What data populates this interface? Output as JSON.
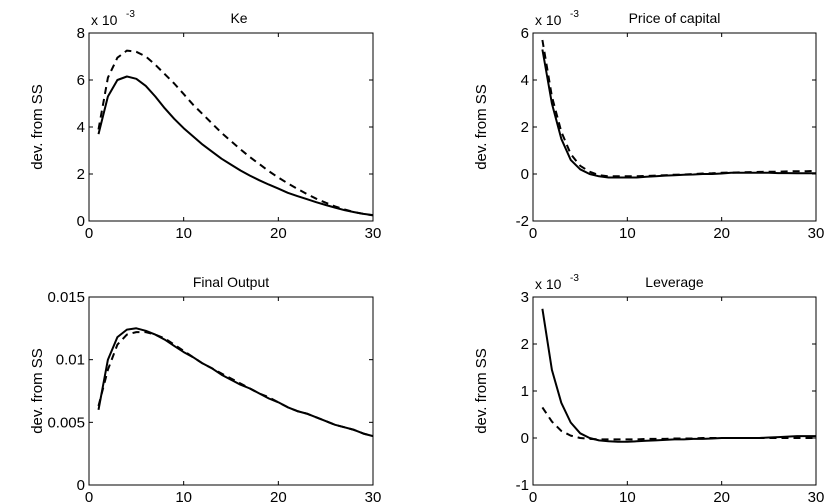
{
  "chart_data": [
    {
      "type": "line",
      "title": "Ke",
      "xlabel": "",
      "ylabel": "dev. from SS",
      "y_scale": {
        "base": "x 10",
        "exponent": "-3"
      },
      "xlim": [
        0,
        30
      ],
      "ylim": [
        0,
        8
      ],
      "x_ticks": [
        "0",
        "10",
        "20",
        "30"
      ],
      "y_ticks": [
        "0",
        "2",
        "4",
        "6",
        "8"
      ],
      "x": [
        1,
        2,
        3,
        4,
        5,
        6,
        7,
        8,
        9,
        10,
        11,
        12,
        13,
        14,
        15,
        16,
        17,
        18,
        19,
        20,
        21,
        22,
        23,
        24,
        25,
        26,
        27,
        28,
        29,
        30
      ],
      "series": [
        {
          "style": "solid",
          "values": [
            3.7,
            5.3,
            6.0,
            6.15,
            6.05,
            5.75,
            5.3,
            4.8,
            4.35,
            3.95,
            3.6,
            3.25,
            2.95,
            2.65,
            2.4,
            2.15,
            1.93,
            1.73,
            1.55,
            1.38,
            1.2,
            1.06,
            0.93,
            0.8,
            0.68,
            0.57,
            0.46,
            0.38,
            0.3,
            0.25
          ]
        },
        {
          "style": "dashed",
          "values": [
            3.9,
            6.1,
            6.95,
            7.25,
            7.2,
            7.0,
            6.65,
            6.25,
            5.85,
            5.4,
            4.95,
            4.55,
            4.15,
            3.75,
            3.4,
            3.05,
            2.72,
            2.42,
            2.12,
            1.85,
            1.6,
            1.37,
            1.15,
            0.95,
            0.78,
            0.62,
            0.49,
            0.38,
            0.3,
            0.24
          ]
        }
      ]
    },
    {
      "type": "line",
      "title": "Price of capital",
      "xlabel": "",
      "ylabel": "dev. from SS",
      "y_scale": {
        "base": "x 10",
        "exponent": "-3"
      },
      "xlim": [
        0,
        30
      ],
      "ylim": [
        -2,
        6
      ],
      "x_ticks": [
        "0",
        "10",
        "20",
        "30"
      ],
      "y_ticks": [
        "-2",
        "0",
        "2",
        "4",
        "6"
      ],
      "x": [
        1,
        2,
        3,
        4,
        5,
        6,
        7,
        8,
        9,
        10,
        11,
        12,
        13,
        14,
        15,
        16,
        17,
        18,
        19,
        20,
        21,
        22,
        23,
        24,
        25,
        26,
        27,
        28,
        29,
        30
      ],
      "series": [
        {
          "style": "solid",
          "values": [
            5.3,
            3.0,
            1.5,
            0.6,
            0.2,
            0.0,
            -0.1,
            -0.15,
            -0.15,
            -0.15,
            -0.15,
            -0.12,
            -0.1,
            -0.07,
            -0.05,
            -0.03,
            -0.02,
            0.0,
            0.0,
            0.02,
            0.05,
            0.05,
            0.05,
            0.05,
            0.05,
            0.04,
            0.04,
            0.03,
            0.03,
            0.03
          ]
        },
        {
          "style": "dashed",
          "values": [
            5.7,
            3.3,
            1.8,
            0.85,
            0.35,
            0.1,
            -0.05,
            -0.1,
            -0.1,
            -0.1,
            -0.1,
            -0.08,
            -0.07,
            -0.05,
            -0.03,
            -0.02,
            0.0,
            0.02,
            0.03,
            0.05,
            0.06,
            0.07,
            0.08,
            0.09,
            0.1,
            0.1,
            0.11,
            0.12,
            0.12,
            0.13
          ]
        }
      ]
    },
    {
      "type": "line",
      "title": "Final Output",
      "xlabel": "",
      "ylabel": "dev. from SS",
      "xlim": [
        0,
        30
      ],
      "ylim": [
        0,
        0.015
      ],
      "x_ticks": [
        "0",
        "10",
        "20",
        "30"
      ],
      "y_ticks": [
        "0",
        "0.005",
        "0.01",
        "0.015"
      ],
      "x": [
        1,
        2,
        3,
        4,
        5,
        6,
        7,
        8,
        9,
        10,
        11,
        12,
        13,
        14,
        15,
        16,
        17,
        18,
        19,
        20,
        21,
        22,
        23,
        24,
        25,
        26,
        27,
        28,
        29,
        30
      ],
      "series": [
        {
          "style": "solid",
          "values": [
            0.006,
            0.01,
            0.0118,
            0.0124,
            0.0125,
            0.0123,
            0.012,
            0.0116,
            0.0111,
            0.0106,
            0.0102,
            0.0097,
            0.0093,
            0.0088,
            0.0084,
            0.008,
            0.0077,
            0.0073,
            0.0069,
            0.0066,
            0.0062,
            0.0059,
            0.0057,
            0.0054,
            0.0051,
            0.0048,
            0.0046,
            0.0044,
            0.0041,
            0.0039
          ]
        },
        {
          "style": "dashed",
          "values": [
            0.0063,
            0.0092,
            0.0112,
            0.012,
            0.0122,
            0.0122,
            0.012,
            0.0117,
            0.0112,
            0.0107,
            0.0102,
            0.0097,
            0.0093,
            0.0089,
            0.0085,
            0.0081,
            0.0077,
            0.0073,
            0.007,
            0.0066,
            0.0062,
            0.0059,
            0.0057,
            0.0054,
            0.0051,
            0.0048,
            0.0046,
            0.0044,
            0.0041,
            0.0039
          ]
        }
      ]
    },
    {
      "type": "line",
      "title": "Leverage",
      "xlabel": "",
      "ylabel": "dev. from SS",
      "y_scale": {
        "base": "x 10",
        "exponent": "-3"
      },
      "xlim": [
        0,
        30
      ],
      "ylim": [
        -1,
        3
      ],
      "x_ticks": [
        "0",
        "10",
        "20",
        "30"
      ],
      "y_ticks": [
        "-1",
        "0",
        "1",
        "2",
        "3"
      ],
      "x": [
        1,
        2,
        3,
        4,
        5,
        6,
        7,
        8,
        9,
        10,
        11,
        12,
        13,
        14,
        15,
        16,
        17,
        18,
        19,
        20,
        21,
        22,
        23,
        24,
        25,
        26,
        27,
        28,
        29,
        30
      ],
      "series": [
        {
          "style": "solid",
          "values": [
            2.75,
            1.45,
            0.75,
            0.33,
            0.1,
            0.0,
            -0.05,
            -0.07,
            -0.08,
            -0.08,
            -0.07,
            -0.06,
            -0.05,
            -0.04,
            -0.03,
            -0.03,
            -0.02,
            -0.02,
            -0.01,
            0.0,
            0.0,
            0.0,
            0.0,
            0.0,
            0.01,
            0.02,
            0.03,
            0.04,
            0.04,
            0.04
          ]
        },
        {
          "style": "dashed",
          "values": [
            0.65,
            0.35,
            0.15,
            0.05,
            0.0,
            -0.02,
            -0.03,
            -0.03,
            -0.03,
            -0.03,
            -0.03,
            -0.02,
            -0.02,
            -0.02,
            -0.01,
            -0.01,
            -0.01,
            0.0,
            0.0,
            0.0,
            0.0,
            0.0,
            0.0,
            0.0,
            0.0,
            0.0,
            0.0,
            0.0,
            0.0,
            0.0
          ]
        }
      ]
    }
  ]
}
